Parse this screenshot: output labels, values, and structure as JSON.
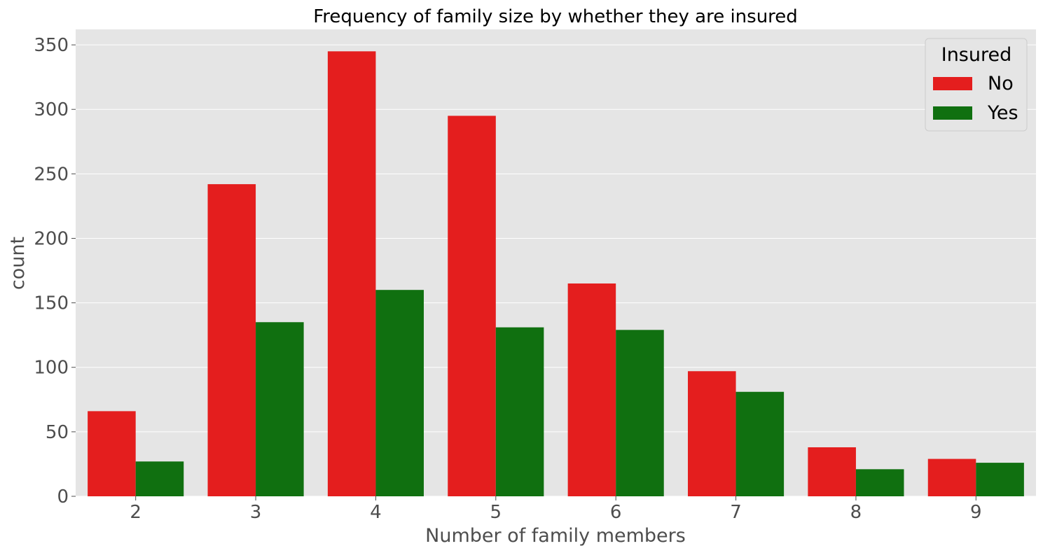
{
  "chart_data": {
    "type": "bar",
    "title": "Frequency of family size by whether they are insured",
    "xlabel": "Number of family members",
    "ylabel": "count",
    "categories": [
      "2",
      "3",
      "4",
      "5",
      "6",
      "7",
      "8",
      "9"
    ],
    "series": [
      {
        "name": "No",
        "color": "#e41e1e",
        "values": [
          66,
          242,
          345,
          295,
          165,
          97,
          38,
          29
        ]
      },
      {
        "name": "Yes",
        "color": "#107010",
        "values": [
          27,
          135,
          160,
          131,
          129,
          81,
          21,
          26
        ]
      }
    ],
    "ylim": [
      0,
      362
    ],
    "yticks": [
      0,
      50,
      100,
      150,
      200,
      250,
      300,
      350
    ],
    "grid": true,
    "background_color": "#e5e5e5",
    "grid_color": "#ffffff",
    "legend": {
      "title": "Insured",
      "placement": "top-right"
    }
  }
}
